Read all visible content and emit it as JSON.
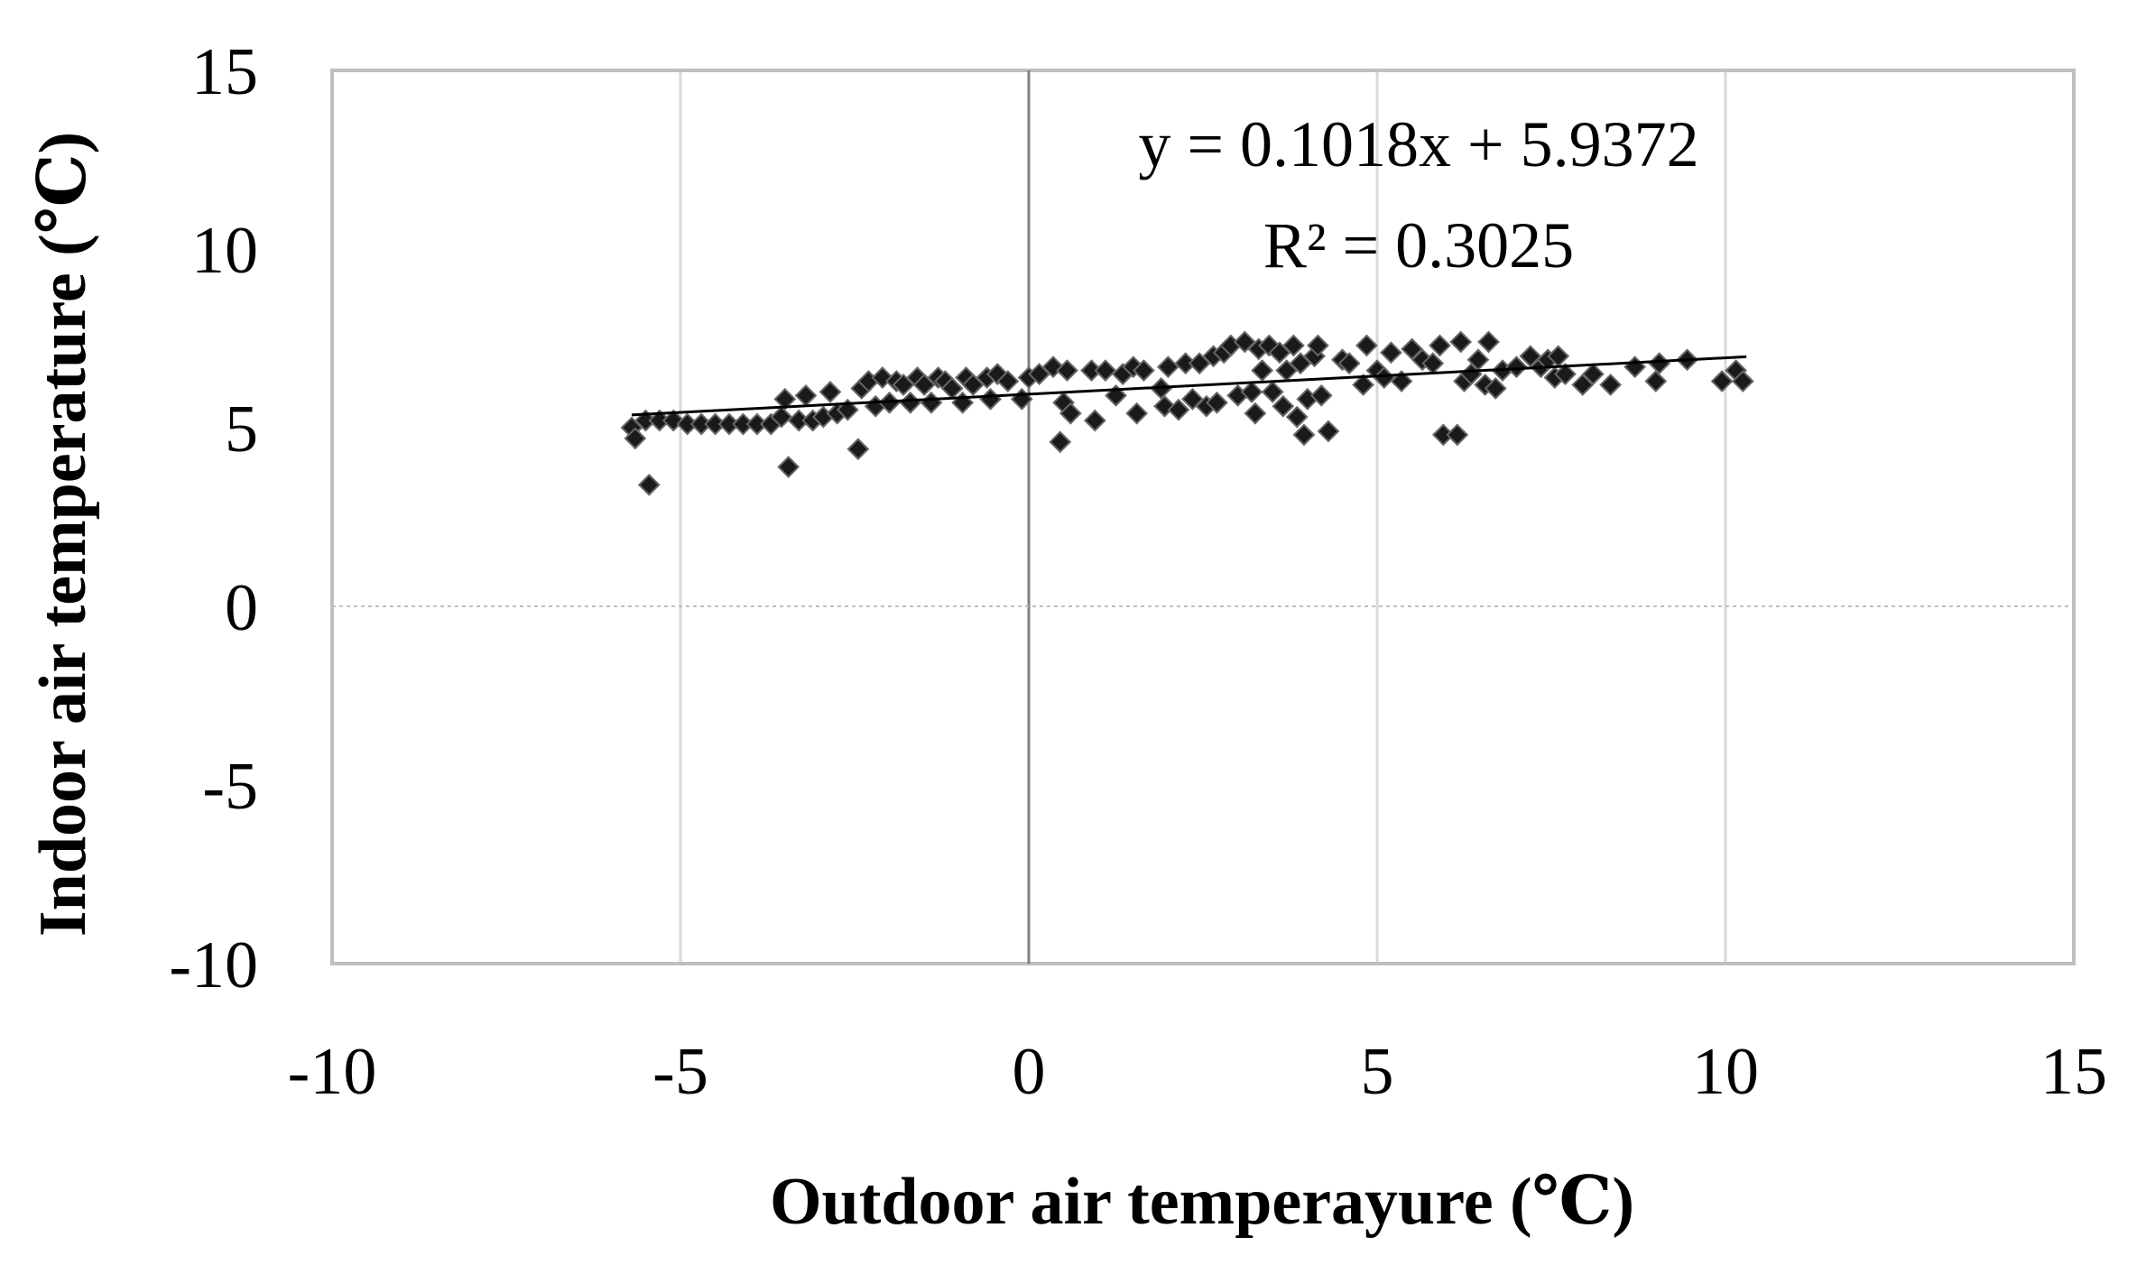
{
  "chart_data": {
    "type": "scatter",
    "title": "",
    "xlabel": "Outdoor air temperayure (℃)",
    "ylabel": "Indoor air temperature (℃)",
    "xlim": [
      -10,
      15
    ],
    "ylim": [
      -10,
      15
    ],
    "x_ticks": [
      -10,
      -5,
      0,
      5,
      10,
      15
    ],
    "y_ticks": [
      -10,
      -5,
      0,
      5,
      10,
      15
    ],
    "x_tick_labels": [
      "-10",
      "-5",
      "0",
      "5",
      "10",
      "15"
    ],
    "y_tick_labels": [
      "-10",
      "-5",
      "0",
      "5",
      "10",
      "15"
    ],
    "grid": {
      "vertical": true,
      "horizontal": false
    },
    "legend": "none",
    "marker": "diamond",
    "marker_color": "#1a1a1a",
    "grid_color": "#d9d9d9",
    "axis_line_color": "#808080",
    "zero_line_color": "#bfbfbf",
    "trendline": {
      "type": "linear",
      "slope": 0.1018,
      "intercept": 5.9372,
      "x_range": [
        -5.7,
        10.3
      ],
      "color": "#000000"
    },
    "annotations": [
      {
        "text": "y = 0.1018x + 5.9372"
      },
      {
        "text": "R² = 0.3025"
      }
    ],
    "points": [
      {
        "x": -5.7,
        "y": 5.0
      },
      {
        "x": -5.65,
        "y": 4.7
      },
      {
        "x": -5.5,
        "y": 5.2
      },
      {
        "x": -5.45,
        "y": 3.4
      },
      {
        "x": -5.3,
        "y": 5.2
      },
      {
        "x": -5.1,
        "y": 5.2
      },
      {
        "x": -4.9,
        "y": 5.1
      },
      {
        "x": -4.7,
        "y": 5.1
      },
      {
        "x": -4.5,
        "y": 5.1
      },
      {
        "x": -4.3,
        "y": 5.1
      },
      {
        "x": -4.1,
        "y": 5.1
      },
      {
        "x": -3.9,
        "y": 5.1
      },
      {
        "x": -3.7,
        "y": 5.1
      },
      {
        "x": -3.55,
        "y": 5.3
      },
      {
        "x": -3.5,
        "y": 5.8
      },
      {
        "x": -3.45,
        "y": 3.9
      },
      {
        "x": -3.3,
        "y": 5.2
      },
      {
        "x": -3.2,
        "y": 5.9
      },
      {
        "x": -3.1,
        "y": 5.2
      },
      {
        "x": -2.95,
        "y": 5.3
      },
      {
        "x": -2.85,
        "y": 6.0
      },
      {
        "x": -2.75,
        "y": 5.4
      },
      {
        "x": -2.6,
        "y": 5.5
      },
      {
        "x": -2.45,
        "y": 4.4
      },
      {
        "x": -2.4,
        "y": 6.1
      },
      {
        "x": -2.3,
        "y": 6.3
      },
      {
        "x": -2.2,
        "y": 5.6
      },
      {
        "x": -2.1,
        "y": 6.4
      },
      {
        "x": -2.0,
        "y": 5.7
      },
      {
        "x": -1.9,
        "y": 6.3
      },
      {
        "x": -1.8,
        "y": 6.2
      },
      {
        "x": -1.7,
        "y": 5.7
      },
      {
        "x": -1.6,
        "y": 6.4
      },
      {
        "x": -1.5,
        "y": 6.2
      },
      {
        "x": -1.4,
        "y": 5.7
      },
      {
        "x": -1.3,
        "y": 6.4
      },
      {
        "x": -1.2,
        "y": 6.3
      },
      {
        "x": -1.1,
        "y": 6.1
      },
      {
        "x": -0.95,
        "y": 5.7
      },
      {
        "x": -0.9,
        "y": 6.4
      },
      {
        "x": -0.8,
        "y": 6.2
      },
      {
        "x": -0.6,
        "y": 6.4
      },
      {
        "x": -0.55,
        "y": 5.8
      },
      {
        "x": -0.45,
        "y": 6.5
      },
      {
        "x": -0.3,
        "y": 6.3
      },
      {
        "x": -0.1,
        "y": 5.8
      },
      {
        "x": 0.0,
        "y": 6.4
      },
      {
        "x": 0.15,
        "y": 6.5
      },
      {
        "x": 0.35,
        "y": 6.7
      },
      {
        "x": 0.45,
        "y": 4.6
      },
      {
        "x": 0.5,
        "y": 5.7
      },
      {
        "x": 0.55,
        "y": 6.6
      },
      {
        "x": 0.6,
        "y": 5.4
      },
      {
        "x": 0.9,
        "y": 6.6
      },
      {
        "x": 0.95,
        "y": 5.2
      },
      {
        "x": 1.1,
        "y": 6.6
      },
      {
        "x": 1.25,
        "y": 5.9
      },
      {
        "x": 1.35,
        "y": 6.5
      },
      {
        "x": 1.5,
        "y": 6.7
      },
      {
        "x": 1.55,
        "y": 5.4
      },
      {
        "x": 1.65,
        "y": 6.6
      },
      {
        "x": 1.9,
        "y": 6.1
      },
      {
        "x": 1.95,
        "y": 5.6
      },
      {
        "x": 2.0,
        "y": 6.7
      },
      {
        "x": 2.15,
        "y": 5.5
      },
      {
        "x": 2.25,
        "y": 6.8
      },
      {
        "x": 2.35,
        "y": 5.8
      },
      {
        "x": 2.45,
        "y": 6.8
      },
      {
        "x": 2.55,
        "y": 5.6
      },
      {
        "x": 2.65,
        "y": 7.0
      },
      {
        "x": 2.7,
        "y": 5.7
      },
      {
        "x": 2.8,
        "y": 7.1
      },
      {
        "x": 2.9,
        "y": 7.3
      },
      {
        "x": 3.0,
        "y": 5.9
      },
      {
        "x": 3.1,
        "y": 7.4
      },
      {
        "x": 3.2,
        "y": 6.0
      },
      {
        "x": 3.25,
        "y": 5.4
      },
      {
        "x": 3.3,
        "y": 7.2
      },
      {
        "x": 3.35,
        "y": 6.6
      },
      {
        "x": 3.45,
        "y": 7.3
      },
      {
        "x": 3.5,
        "y": 6.0
      },
      {
        "x": 3.6,
        "y": 7.1
      },
      {
        "x": 3.65,
        "y": 5.6
      },
      {
        "x": 3.7,
        "y": 6.6
      },
      {
        "x": 3.8,
        "y": 7.3
      },
      {
        "x": 3.85,
        "y": 5.3
      },
      {
        "x": 3.9,
        "y": 6.8
      },
      {
        "x": 3.95,
        "y": 4.8
      },
      {
        "x": 4.0,
        "y": 5.8
      },
      {
        "x": 4.1,
        "y": 7.0
      },
      {
        "x": 4.15,
        "y": 7.3
      },
      {
        "x": 4.2,
        "y": 5.9
      },
      {
        "x": 4.3,
        "y": 4.9
      },
      {
        "x": 4.5,
        "y": 6.9
      },
      {
        "x": 4.6,
        "y": 6.8
      },
      {
        "x": 4.8,
        "y": 6.2
      },
      {
        "x": 4.85,
        "y": 7.3
      },
      {
        "x": 5.0,
        "y": 6.6
      },
      {
        "x": 5.1,
        "y": 6.4
      },
      {
        "x": 5.2,
        "y": 7.1
      },
      {
        "x": 5.35,
        "y": 6.3
      },
      {
        "x": 5.5,
        "y": 7.2
      },
      {
        "x": 5.65,
        "y": 6.9
      },
      {
        "x": 5.8,
        "y": 6.8
      },
      {
        "x": 5.9,
        "y": 7.3
      },
      {
        "x": 5.95,
        "y": 4.8
      },
      {
        "x": 6.15,
        "y": 4.8
      },
      {
        "x": 6.2,
        "y": 7.4
      },
      {
        "x": 6.25,
        "y": 6.3
      },
      {
        "x": 6.35,
        "y": 6.5
      },
      {
        "x": 6.45,
        "y": 6.9
      },
      {
        "x": 6.55,
        "y": 6.2
      },
      {
        "x": 6.6,
        "y": 7.4
      },
      {
        "x": 6.7,
        "y": 6.1
      },
      {
        "x": 6.8,
        "y": 6.6
      },
      {
        "x": 7.0,
        "y": 6.7
      },
      {
        "x": 7.2,
        "y": 7.0
      },
      {
        "x": 7.35,
        "y": 6.7
      },
      {
        "x": 7.45,
        "y": 6.9
      },
      {
        "x": 7.55,
        "y": 6.4
      },
      {
        "x": 7.6,
        "y": 7.0
      },
      {
        "x": 7.7,
        "y": 6.5
      },
      {
        "x": 7.95,
        "y": 6.2
      },
      {
        "x": 8.1,
        "y": 6.5
      },
      {
        "x": 8.35,
        "y": 6.2
      },
      {
        "x": 8.7,
        "y": 6.7
      },
      {
        "x": 9.0,
        "y": 6.3
      },
      {
        "x": 9.05,
        "y": 6.8
      },
      {
        "x": 9.45,
        "y": 6.9
      },
      {
        "x": 9.95,
        "y": 6.3
      },
      {
        "x": 10.15,
        "y": 6.6
      },
      {
        "x": 10.25,
        "y": 6.3
      }
    ]
  }
}
